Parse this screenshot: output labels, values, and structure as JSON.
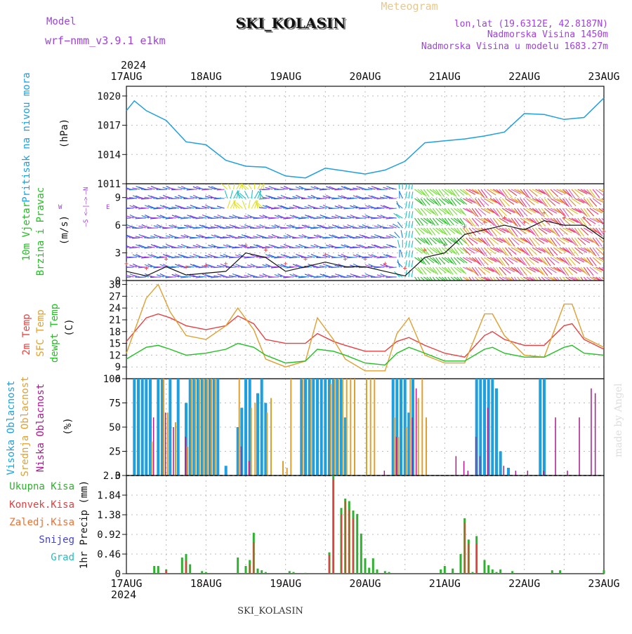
{
  "header": {
    "model_label": "Model",
    "model_name": "wrf−nmm_v3.9.1  e1km",
    "station": "SKI_KOLASIN",
    "meteogram": "Meteogram",
    "lonlat": "lon,lat (19.6312E, 42.8187N)",
    "elevation": "Nadmorska Visina 1450m",
    "model_elevation": "Nadmorska Visina u modelu 1683.27m"
  },
  "footer": {
    "station": "SKI_KOLASIN",
    "year": "2024",
    "credit": "made by Angel"
  },
  "time_axis": {
    "year": "2024",
    "labels": [
      "17AUG",
      "18AUG",
      "19AUG",
      "20AUG",
      "21AUG",
      "22AUG",
      "23AUG"
    ]
  },
  "colors": {
    "pressure": "#1e9fe0",
    "wind_text": "#20c020",
    "wind_units": "#a040e0",
    "t2m": "#e84040",
    "sfc": "#e0a030",
    "dew": "#20c020",
    "high_cloud": "#1e9fe0",
    "mid_cloud": "#e0a030",
    "low_cloud": "#b01890",
    "precip_total": "#30b030",
    "precip_conv": "#e04040",
    "precip_frozen": "#f07030",
    "snow": "#4040e0",
    "hail": "#20c0c0"
  },
  "panels": {
    "pressure": {
      "label": "Pritisak na nivou mora",
      "unit": "(hPa)"
    },
    "wind": {
      "label1": "10m Vjetar",
      "label2": "Brzina i Pravac",
      "unit": "(m/s)",
      "compass_w": "W",
      "compass_e": "E",
      "compass_n": "<—|—>",
      "compass_s": "—N",
      "compass_sn": "—S"
    },
    "temp": {
      "label1": "2m Temp",
      "label2": "SFC Temp",
      "label3": "dewpt Temp",
      "unit": "(C)"
    },
    "cloud": {
      "label1": "Visoka Oblacnost",
      "label2": "Srednja Oblacnost",
      "label3": "Niska Oblacnost",
      "unit": "(%)"
    },
    "precip": {
      "unit": "1hr Precip (mm)",
      "legend": [
        "Ukupna Kisa",
        "Konvek.Kisa",
        "Zaledj.Kisa",
        "Snijeg",
        "Grad"
      ]
    }
  },
  "chart_data": [
    {
      "type": "line",
      "title": "Pritisak na nivou mora",
      "ylabel": "(hPa)",
      "ylim": [
        1011,
        1021
      ],
      "yticks": [
        1011,
        1014,
        1017,
        1020
      ],
      "x_days": [
        0,
        0.1,
        0.25,
        0.5,
        0.75,
        1,
        1.25,
        1.5,
        1.75,
        2,
        2.25,
        2.5,
        2.75,
        3,
        3.25,
        3.5,
        3.75,
        4,
        4.25,
        4.5,
        4.75,
        5,
        5.25,
        5.5,
        5.75,
        6
      ],
      "series": [
        {
          "name": "Pritisak",
          "values": [
            1018.5,
            1019.5,
            1018.5,
            1017.5,
            1015.3,
            1015.0,
            1013.4,
            1012.8,
            1012.7,
            1011.8,
            1011.6,
            1012.6,
            1012.3,
            1012.0,
            1012.4,
            1013.3,
            1015.2,
            1015.4,
            1015.6,
            1015.9,
            1016.3,
            1018.2,
            1018.1,
            1017.6,
            1017.8,
            1019.8
          ]
        }
      ]
    },
    {
      "type": "line",
      "title": "10m Vjetar Brzina i Pravac",
      "ylabel": "(m/s)",
      "ylim": [
        0,
        10.5
      ],
      "yticks": [
        0,
        3,
        6,
        9
      ],
      "x_days": [
        0,
        0.25,
        0.5,
        0.75,
        1,
        1.25,
        1.5,
        1.75,
        2,
        2.25,
        2.5,
        2.75,
        3,
        3.25,
        3.5,
        3.75,
        4,
        4.25,
        4.5,
        4.75,
        5,
        5.25,
        5.5,
        5.75,
        6
      ],
      "series": [
        {
          "name": "Brzina",
          "values": [
            1.0,
            0.5,
            1.5,
            0.6,
            0.8,
            1.0,
            3.0,
            2.5,
            1.0,
            1.5,
            2.0,
            1.5,
            1.5,
            1.0,
            0.5,
            2.5,
            3.0,
            5.0,
            5.5,
            6.0,
            5.5,
            6.5,
            6.0,
            6.0,
            4.5
          ]
        }
      ]
    },
    {
      "type": "line",
      "title": "Temp",
      "ylabel": "(C)",
      "ylim": [
        6,
        31
      ],
      "yticks": [
        6,
        9,
        12,
        15,
        18,
        21,
        24,
        27,
        30
      ],
      "x_days": [
        0,
        0.25,
        0.4,
        0.55,
        0.75,
        1,
        1.25,
        1.4,
        1.6,
        1.75,
        2,
        2.25,
        2.4,
        2.6,
        2.75,
        3,
        3.25,
        3.4,
        3.55,
        3.75,
        4,
        4.25,
        4.5,
        4.6,
        4.75,
        5,
        5.25,
        5.5,
        5.6,
        5.75,
        6
      ],
      "series": [
        {
          "name": "2m Temp",
          "values": [
            15.5,
            21.5,
            22.5,
            21.5,
            19.5,
            18.5,
            19.5,
            22.0,
            20.0,
            16.0,
            15.0,
            15.0,
            17.5,
            15.5,
            14.5,
            13.0,
            13.0,
            15.5,
            16.5,
            14.5,
            12.5,
            11.5,
            17.0,
            18.0,
            16.0,
            14.5,
            14.5,
            19.5,
            20.0,
            16.0,
            13.5
          ]
        },
        {
          "name": "SFC Temp",
          "values": [
            12.5,
            26.5,
            30.0,
            23.0,
            17.0,
            16.0,
            19.5,
            24.0,
            18.5,
            11.0,
            9.0,
            10.5,
            21.5,
            16.0,
            11.0,
            8.0,
            8.0,
            17.5,
            21.5,
            12.0,
            10.0,
            10.0,
            22.5,
            22.5,
            17.0,
            12.0,
            11.5,
            25.0,
            25.0,
            16.5,
            14.0
          ]
        },
        {
          "name": "dewpt Temp",
          "values": [
            11.0,
            14.0,
            14.5,
            13.5,
            12.0,
            12.5,
            13.5,
            15.0,
            14.0,
            12.0,
            10.0,
            10.5,
            13.5,
            13.0,
            12.0,
            10.0,
            9.5,
            12.5,
            14.0,
            12.5,
            10.5,
            10.5,
            13.5,
            14.0,
            12.5,
            11.5,
            11.5,
            14.0,
            14.5,
            12.5,
            12.0
          ]
        }
      ]
    },
    {
      "type": "bar",
      "title": "Oblacnost",
      "ylabel": "(%)",
      "ylim": [
        0,
        100
      ],
      "yticks": [
        0,
        25,
        50,
        75,
        100
      ],
      "series": [
        {
          "name": "Visoka Oblacnost",
          "x_days": [
            0.1,
            0.15,
            0.2,
            0.25,
            0.3,
            0.4,
            0.45,
            0.55,
            0.65,
            0.75,
            0.8,
            0.85,
            0.9,
            0.95,
            1.0,
            1.05,
            1.1,
            1.15,
            1.25,
            1.4,
            1.45,
            1.5,
            1.55,
            1.65,
            1.7,
            1.75,
            2.2,
            2.25,
            2.3,
            2.35,
            2.4,
            2.45,
            2.5,
            2.55,
            2.6,
            2.65,
            2.7,
            2.75,
            3.35,
            3.4,
            3.45,
            3.5,
            3.55,
            3.6,
            4.4,
            4.45,
            4.5,
            4.55,
            4.6,
            4.65,
            4.7,
            4.8,
            5.2,
            5.25
          ],
          "values": [
            100,
            100,
            100,
            100,
            100,
            100,
            100,
            100,
            100,
            75,
            100,
            100,
            100,
            100,
            100,
            100,
            100,
            100,
            10,
            50,
            70,
            100,
            100,
            85,
            100,
            75,
            100,
            100,
            100,
            100,
            100,
            100,
            100,
            100,
            100,
            100,
            100,
            60,
            100,
            100,
            100,
            100,
            65,
            100,
            100,
            100,
            100,
            100,
            100,
            90,
            25,
            8,
            100,
            100
          ]
        },
        {
          "name": "Srednja Oblacnost",
          "x_days": [
            0.3,
            0.45,
            0.5,
            0.6,
            0.75,
            0.8,
            0.85,
            0.9,
            0.95,
            1.0,
            1.05,
            1.1,
            1.4,
            1.55,
            1.6,
            1.75,
            1.8,
            1.95,
            2.0,
            2.05,
            2.2,
            2.3,
            2.55,
            2.6,
            2.65,
            2.7,
            2.75,
            2.8,
            2.85,
            3.0,
            3.05,
            3.1,
            3.35,
            3.4,
            3.5,
            3.55,
            3.65,
            3.7,
            3.75
          ],
          "values": [
            35,
            100,
            65,
            55,
            30,
            100,
            100,
            100,
            100,
            100,
            100,
            100,
            100,
            70,
            75,
            65,
            80,
            15,
            8,
            100,
            100,
            100,
            95,
            100,
            100,
            100,
            100,
            100,
            100,
            100,
            100,
            100,
            60,
            40,
            50,
            100,
            80,
            100,
            60
          ]
        },
        {
          "name": "Niska Oblacnost",
          "x_days": [
            0.35,
            0.5,
            0.6,
            0.75,
            1.45,
            1.55,
            3.25,
            3.4,
            3.6,
            3.65,
            4.15,
            4.25,
            4.3,
            4.4,
            4.45,
            4.55,
            4.75,
            4.9,
            5.05,
            5.25,
            5.4,
            5.55,
            5.7,
            5.85,
            5.9
          ],
          "values": [
            60,
            65,
            50,
            40,
            30,
            15,
            5,
            40,
            60,
            90,
            20,
            15,
            5,
            40,
            20,
            70,
            10,
            5,
            5,
            5,
            60,
            5,
            60,
            90,
            85
          ]
        }
      ]
    },
    {
      "type": "bar",
      "title": "1hr Precip (mm)",
      "ylabel": "1hr Precip (mm)",
      "ylim": [
        0,
        2.3
      ],
      "yticks": [
        0,
        0.46,
        0.92,
        1.38,
        1.84,
        2.3
      ],
      "series": [
        {
          "name": "Ukupna Kisa",
          "x_days": [
            0.35,
            0.4,
            0.5,
            0.7,
            0.75,
            0.8,
            0.95,
            1.0,
            1.4,
            1.5,
            1.55,
            1.6,
            1.65,
            1.7,
            1.75,
            2.05,
            2.1,
            2.25,
            2.55,
            2.6,
            2.7,
            2.75,
            2.8,
            2.85,
            2.9,
            2.95,
            3.0,
            3.05,
            3.1,
            3.15,
            3.25,
            3.3,
            3.95,
            4.0,
            4.1,
            4.2,
            4.25,
            4.3,
            4.35,
            4.4,
            4.5,
            4.55,
            4.6,
            4.65,
            4.7,
            4.85,
            5.35,
            5.45,
            6.0
          ],
          "values": [
            0.18,
            0.18,
            0.1,
            0.38,
            0.46,
            0.22,
            0.06,
            0.04,
            0.38,
            0.18,
            0.32,
            0.96,
            0.12,
            0.08,
            0.04,
            0.06,
            0.04,
            0.02,
            0.5,
            2.3,
            1.54,
            1.76,
            1.7,
            1.48,
            1.4,
            0.94,
            0.36,
            0.14,
            0.36,
            0.1,
            0.06,
            0.04,
            0.1,
            0.18,
            0.12,
            0.46,
            1.3,
            0.8,
            0.04,
            0.88,
            0.32,
            0.2,
            0.1,
            0.04,
            0.1,
            0.06,
            0.08,
            0.08,
            0.08
          ]
        },
        {
          "name": "Konvek.Kisa",
          "x_days": [
            0.5,
            0.75,
            1.55,
            1.6,
            2.55,
            2.6,
            2.7,
            2.75,
            2.8,
            2.85,
            4.25,
            4.3,
            4.4
          ],
          "values": [
            0.08,
            0.3,
            0.22,
            0.74,
            0.44,
            2.2,
            1.4,
            1.7,
            1.5,
            1.3,
            1.2,
            0.7,
            0.7
          ]
        }
      ]
    }
  ]
}
